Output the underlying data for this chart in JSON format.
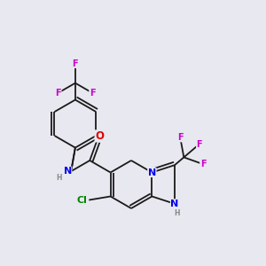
{
  "background_color": "#e8e8f0",
  "bond_color": "#1a1a1a",
  "atom_colors": {
    "N": "#0000ee",
    "O": "#dd0000",
    "F": "#cc00cc",
    "Cl": "#008800",
    "H": "#888888",
    "C": "#1a1a1a"
  },
  "font_size": 7.0,
  "lw": 1.3
}
